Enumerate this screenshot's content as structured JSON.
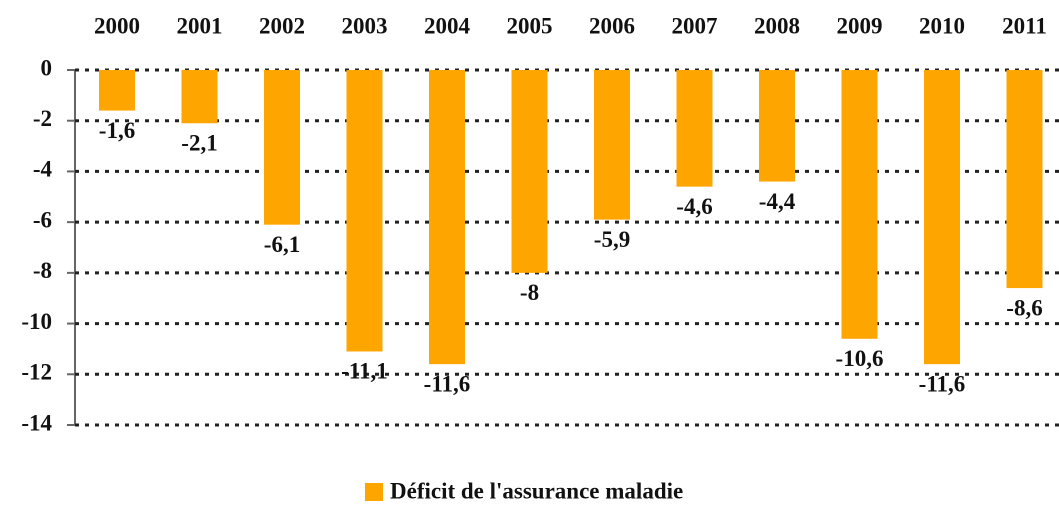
{
  "chart_data": {
    "type": "bar",
    "categories": [
      "2000",
      "2001",
      "2002",
      "2003",
      "2004",
      "2005",
      "2006",
      "2007",
      "2008",
      "2009",
      "2010",
      "2011"
    ],
    "series": [
      {
        "name": "Déficit de l'assurance maladie",
        "color": "#ffa500",
        "values": [
          -1.6,
          -2.1,
          -6.1,
          -11.1,
          -11.6,
          -8,
          -5.9,
          -4.6,
          -4.4,
          -10.6,
          -11.6,
          -8.6
        ],
        "value_labels": [
          "-1,6",
          "-2,1",
          "-6,1",
          "-11,1",
          "-11,6",
          "-8",
          "-5,9",
          "-4,6",
          "-4,4",
          "-10,6",
          "-11,6",
          "-8,6"
        ]
      }
    ],
    "ylim": [
      -14,
      0
    ],
    "yticks": [
      0,
      -2,
      -4,
      -6,
      -8,
      -10,
      -12,
      -14
    ],
    "grid": true,
    "legend": "bottom"
  }
}
